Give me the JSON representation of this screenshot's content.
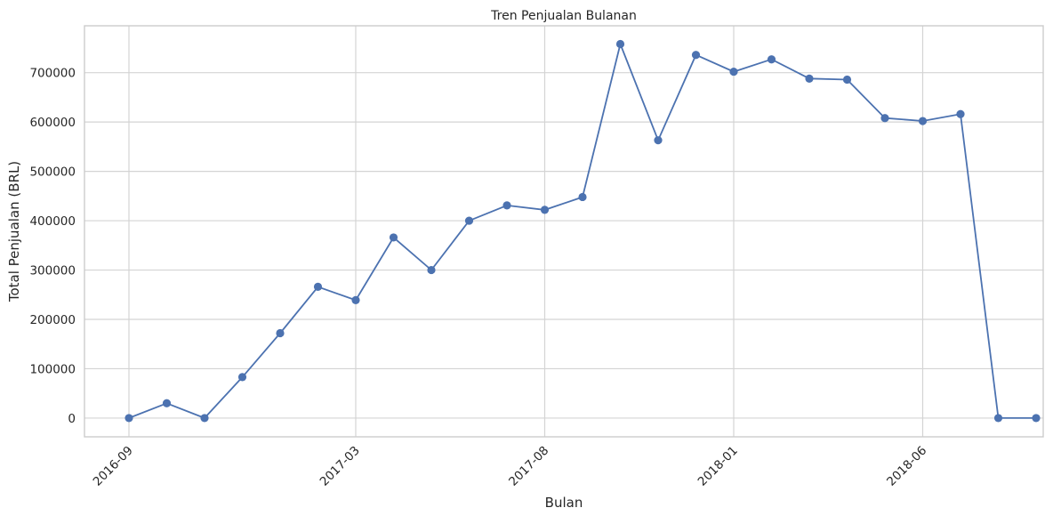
{
  "chart_data": {
    "type": "line",
    "title": "Tren Penjualan Bulanan",
    "xlabel": "Bulan",
    "ylabel": "Total Penjualan (BRL)",
    "x": [
      "2016-09",
      "2016-10",
      "2016-11",
      "2016-12",
      "2017-01",
      "2017-02",
      "2017-03",
      "2017-04",
      "2017-05",
      "2017-06",
      "2017-07",
      "2017-08",
      "2017-09",
      "2017-10",
      "2017-11",
      "2017-12",
      "2018-01",
      "2018-02",
      "2018-03",
      "2018-04",
      "2018-05",
      "2018-06",
      "2018-07",
      "2018-08",
      "2018-09"
    ],
    "xticks": [
      "2016-09",
      "2017-03",
      "2017-08",
      "2018-01",
      "2018-06"
    ],
    "ylim": [
      -38000,
      795000
    ],
    "yticks": [
      0,
      100000,
      200000,
      300000,
      400000,
      500000,
      600000,
      700000
    ],
    "ytick_labels": [
      "0",
      "100000",
      "200000",
      "300000",
      "400000",
      "500000",
      "600000",
      "700000"
    ],
    "grid": true,
    "series": [
      {
        "color": "#4c72b0",
        "marker": "circle",
        "values": [
          0,
          30000,
          0,
          83000,
          172000,
          266000,
          239000,
          366000,
          300000,
          400000,
          431000,
          422000,
          448000,
          758000,
          563000,
          736000,
          702000,
          727000,
          688000,
          686000,
          608000,
          602000,
          616000,
          0,
          0
        ]
      }
    ]
  }
}
